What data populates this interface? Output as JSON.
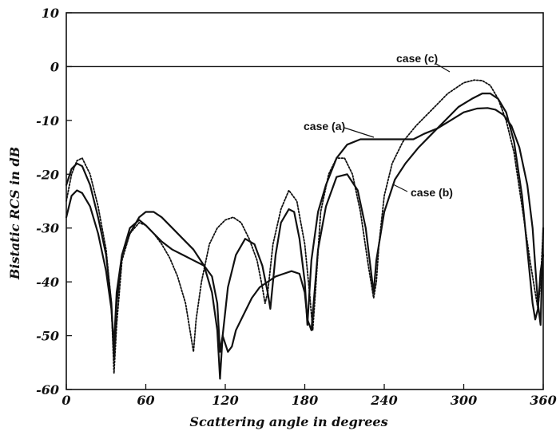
{
  "chart_data": {
    "type": "line",
    "title": "",
    "xlabel": "Scattering angle in degrees",
    "ylabel": "Bistatic RCS in dB",
    "xlim": [
      0,
      360
    ],
    "ylim": [
      -60,
      10
    ],
    "xticks": [
      0,
      60,
      120,
      180,
      240,
      300,
      360
    ],
    "yticks": [
      10,
      0,
      -10,
      -20,
      -30,
      -40,
      -50,
      -60
    ],
    "grid": false,
    "reference_line_y": 0,
    "series": [
      {
        "name": "case (a)",
        "style": "solid",
        "x": [
          0,
          4,
          8,
          12,
          18,
          24,
          30,
          34,
          36,
          38,
          42,
          48,
          55,
          60,
          66,
          72,
          80,
          88,
          96,
          104,
          110,
          114,
          116,
          118,
          122,
          128,
          135,
          142,
          148,
          152,
          154,
          158,
          162,
          168,
          172,
          176,
          180,
          182,
          185,
          190,
          196,
          204,
          212,
          222,
          232,
          240,
          246,
          252,
          256,
          262,
          270,
          280,
          290,
          300,
          310,
          318,
          324,
          330,
          336,
          342,
          348,
          352,
          354,
          356,
          358,
          360
        ],
        "y": [
          -28,
          -24,
          -23,
          -23.5,
          -26,
          -31,
          -38,
          -45,
          -52,
          -42,
          -35,
          -31,
          -28,
          -27,
          -27,
          -28,
          -30,
          -32,
          -34,
          -37,
          -42,
          -49,
          -58,
          -50,
          -41,
          -35,
          -32,
          -33,
          -37,
          -42,
          -45,
          -35,
          -29,
          -26.5,
          -27,
          -32,
          -40,
          -48,
          -36,
          -27,
          -22,
          -17,
          -14.5,
          -13.5,
          -13.5,
          -13.5,
          -13.5,
          -13.5,
          -13.5,
          -13.5,
          -12.5,
          -11.5,
          -10,
          -8.5,
          -7.8,
          -7.7,
          -8,
          -9,
          -11,
          -15,
          -22,
          -30,
          -37,
          -44,
          -48,
          -30
        ]
      },
      {
        "name": "case (b)",
        "style": "solid",
        "x": [
          0,
          4,
          8,
          12,
          18,
          24,
          30,
          34,
          36,
          38,
          42,
          48,
          55,
          60,
          66,
          72,
          80,
          88,
          96,
          104,
          110,
          114,
          116,
          118,
          122,
          125,
          128,
          134,
          140,
          146,
          152,
          158,
          164,
          170,
          176,
          180,
          182,
          185,
          190,
          196,
          204,
          212,
          220,
          226,
          230,
          232,
          234,
          240,
          248,
          256,
          266,
          276,
          286,
          296,
          306,
          314,
          320,
          326,
          332,
          338,
          344,
          348,
          352,
          354,
          356,
          358,
          360
        ],
        "y": [
          -22,
          -19,
          -18,
          -18.5,
          -22,
          -28,
          -35,
          -44,
          -54,
          -44,
          -35,
          -30,
          -28.5,
          -29.5,
          -31,
          -32.5,
          -34,
          -35,
          -36,
          -37,
          -39,
          -44,
          -53,
          -50,
          -53,
          -52,
          -49,
          -46,
          -43,
          -41,
          -40,
          -39,
          -38.5,
          -38,
          -38.5,
          -42,
          -47,
          -49,
          -34,
          -26,
          -20.5,
          -20,
          -23,
          -30,
          -38,
          -42,
          -36,
          -27,
          -21,
          -18,
          -15,
          -12.5,
          -10,
          -7.5,
          -6,
          -5,
          -5,
          -6,
          -8.5,
          -14,
          -24,
          -34,
          -44,
          -47,
          -45,
          -38,
          -35
        ]
      },
      {
        "name": "case (c)",
        "style": "dotted-solid",
        "x": [
          0,
          4,
          8,
          12,
          18,
          24,
          30,
          34,
          36,
          38,
          42,
          48,
          55,
          60,
          66,
          72,
          78,
          84,
          90,
          94,
          96,
          98,
          102,
          108,
          114,
          120,
          126,
          132,
          138,
          144,
          148,
          150,
          152,
          156,
          162,
          168,
          174,
          180,
          184,
          186,
          188,
          192,
          198,
          204,
          210,
          216,
          222,
          228,
          232,
          234,
          236,
          240,
          246,
          254,
          264,
          276,
          288,
          300,
          308,
          314,
          320,
          326,
          332,
          338,
          344,
          350,
          354,
          356,
          358,
          360
        ],
        "y": [
          -25,
          -20,
          -17.5,
          -17,
          -20,
          -26,
          -34,
          -44,
          -57,
          -48,
          -36,
          -31,
          -29,
          -29.5,
          -31,
          -33,
          -35.5,
          -39,
          -44,
          -50,
          -53,
          -47,
          -40,
          -33,
          -30,
          -28.5,
          -28,
          -29,
          -32,
          -36,
          -41,
          -44,
          -42,
          -33,
          -26.5,
          -23,
          -25,
          -33,
          -43,
          -49,
          -42,
          -27,
          -20,
          -17,
          -17,
          -20,
          -27,
          -37,
          -43,
          -40,
          -33,
          -24,
          -18,
          -14,
          -11,
          -8,
          -5,
          -3,
          -2.5,
          -2.6,
          -3.5,
          -6,
          -10,
          -16,
          -26,
          -36,
          -42,
          -45,
          -40,
          -30
        ]
      }
    ],
    "annotations": [
      {
        "text": "case (c)",
        "points_to_series": "case (c)"
      },
      {
        "text": "case (a)",
        "points_to_series": "case (a)"
      },
      {
        "text": "case (b)",
        "points_to_series": "case (b)"
      }
    ]
  }
}
